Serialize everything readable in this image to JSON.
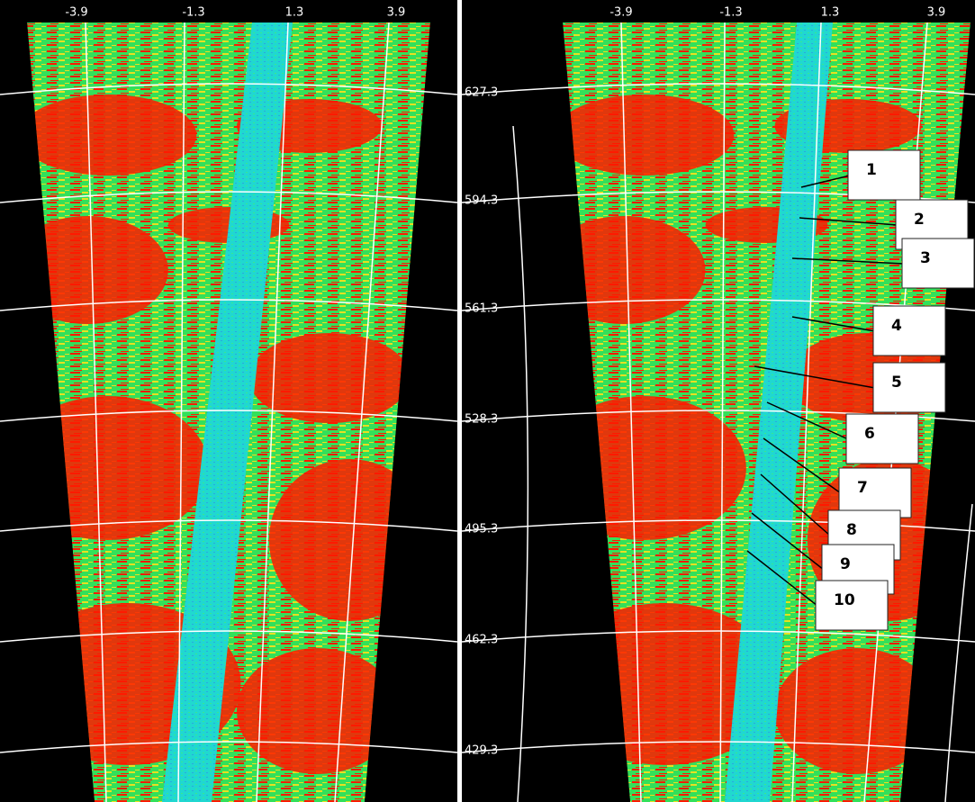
{
  "left_panel": {
    "x_labels": [
      "-3.9",
      "-1.3",
      "1.3",
      "3.9"
    ]
  },
  "right_panel": {
    "x_labels": [
      "-3.9",
      "-1.3",
      "1.3",
      "3.9"
    ],
    "y_labels": [
      "627.3",
      "594.3",
      "561.3",
      "528.3",
      "495.3",
      "462.3",
      "429.3"
    ],
    "callouts": [
      "1",
      "2",
      "3",
      "4",
      "5",
      "6",
      "7",
      "8",
      "9",
      "10"
    ]
  }
}
